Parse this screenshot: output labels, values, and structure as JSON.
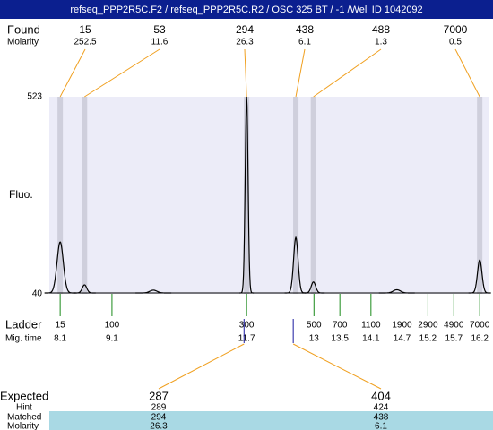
{
  "header": {
    "title": "refseq_PPP2R5C.F2 / refseq_PPP2R5C.R2 / OSC 325 BT  / -1  /Well ID 1042092"
  },
  "labels": {
    "found": "Found",
    "molarity": "Molarity",
    "fluo": "Fluo.",
    "ladder": "Ladder",
    "mig_time": "Mig. time",
    "expected": "Expected",
    "hint": "Hint",
    "matched": "Matched",
    "molarity_row": "Molarity"
  },
  "fluo_axis": {
    "ylim": [
      40,
      523
    ],
    "yticks": [
      40,
      523
    ]
  },
  "time_axis": {
    "xlim": [
      7.89,
      16.37
    ]
  },
  "found": [
    {
      "size": 15,
      "molarity": 252.5,
      "time": 8.1,
      "height": 167
    },
    {
      "size": 53,
      "molarity": 11.6,
      "time": 8.57,
      "height": 62
    },
    {
      "size": 294,
      "molarity": 26.3,
      "time": 11.7,
      "height": 523
    },
    {
      "size": 438,
      "molarity": 6.1,
      "time": 12.65,
      "height": 178
    },
    {
      "size": 488,
      "molarity": 1.3,
      "time": 12.99,
      "height": 69
    },
    {
      "size": 7000,
      "molarity": 0.5,
      "time": 16.2,
      "height": 123
    }
  ],
  "minor_peaks": [
    {
      "time": 9.9,
      "height": 49
    },
    {
      "time": 14.6,
      "height": 50
    }
  ],
  "ladder": [
    {
      "size": 15,
      "time": 8.1
    },
    {
      "size": 100,
      "time": 9.1
    },
    {
      "size": 300,
      "time": 11.7
    },
    {
      "size": 500,
      "time": 13
    },
    {
      "size": 700,
      "time": 13.5
    },
    {
      "size": 1100,
      "time": 14.1
    },
    {
      "size": 1900,
      "time": 14.7
    },
    {
      "size": 2900,
      "time": 15.2
    },
    {
      "size": 4900,
      "time": 15.7
    },
    {
      "size": 7000,
      "time": 16.2
    }
  ],
  "expected": [
    {
      "size": 287,
      "hint": 289,
      "matched": 294,
      "molarity": 26.3,
      "time": 11.65
    },
    {
      "size": 404,
      "hint": 424,
      "matched": 438,
      "molarity": 6.1,
      "time": 12.6
    }
  ]
}
